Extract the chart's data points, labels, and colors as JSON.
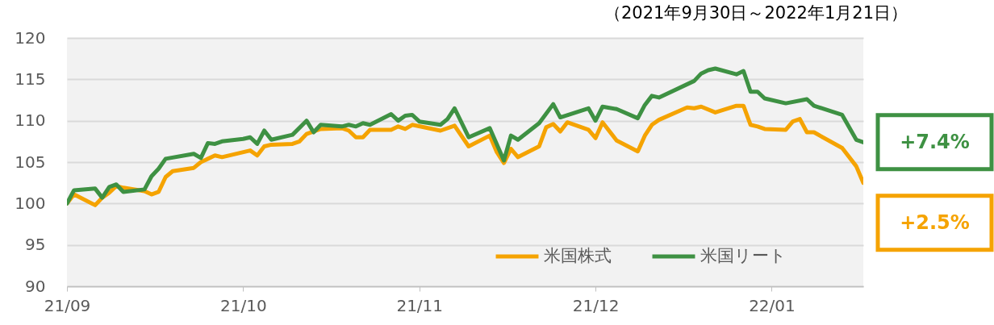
{
  "chart_data": {
    "type": "line",
    "title": "（2021年9月30日～2022年1月21日）",
    "xlim": [
      "2021-09-30",
      "2022-01-21"
    ],
    "xticks": [
      {
        "value": "2021-09-30",
        "label": "21/09"
      },
      {
        "value": "2021-10-25",
        "label": "21/10"
      },
      {
        "value": "2021-11-19",
        "label": "21/11"
      },
      {
        "value": "2021-12-14",
        "label": "21/12"
      },
      {
        "value": "2022-01-08",
        "label": "22/01"
      }
    ],
    "ylim": [
      90,
      120
    ],
    "yticks": [
      90,
      95,
      100,
      105,
      110,
      115,
      120
    ],
    "grid": "y",
    "legend": "bottom right",
    "line_style": "solid",
    "series": [
      {
        "name": "米国株式",
        "color": "#f5a300",
        "x": [
          "2021-09-30",
          "2021-10-01",
          "2021-10-04",
          "2021-10-05",
          "2021-10-06",
          "2021-10-07",
          "2021-10-08",
          "2021-10-11",
          "2021-10-12",
          "2021-10-13",
          "2021-10-14",
          "2021-10-15",
          "2021-10-18",
          "2021-10-19",
          "2021-10-21",
          "2021-10-22",
          "2021-10-26",
          "2021-10-27",
          "2021-10-28",
          "2021-10-29",
          "2021-11-01",
          "2021-11-02",
          "2021-11-03",
          "2021-11-05",
          "2021-11-08",
          "2021-11-09",
          "2021-11-10",
          "2021-11-11",
          "2021-11-12",
          "2021-11-15",
          "2021-11-16",
          "2021-11-17",
          "2021-11-18",
          "2021-11-22",
          "2021-11-24",
          "2021-11-26",
          "2021-11-29",
          "2021-11-30",
          "2021-12-01",
          "2021-12-02",
          "2021-12-03",
          "2021-12-06",
          "2021-12-07",
          "2021-12-08",
          "2021-12-09",
          "2021-12-10",
          "2021-12-13",
          "2021-12-14",
          "2021-12-15",
          "2021-12-17",
          "2021-12-20",
          "2021-12-21",
          "2021-12-22",
          "2021-12-23",
          "2021-12-27",
          "2021-12-28",
          "2021-12-29",
          "2021-12-31",
          "2022-01-03",
          "2022-01-04",
          "2022-01-05",
          "2022-01-06",
          "2022-01-07",
          "2022-01-10",
          "2022-01-11",
          "2022-01-12",
          "2022-01-13",
          "2022-01-14",
          "2022-01-18",
          "2022-01-20",
          "2022-01-21"
        ],
        "values": [
          100.0,
          101.1,
          99.8,
          100.7,
          101.3,
          102.1,
          101.9,
          101.5,
          101.1,
          101.4,
          103.2,
          103.9,
          104.3,
          105.0,
          105.8,
          105.6,
          106.4,
          105.8,
          106.9,
          107.1,
          107.2,
          107.5,
          108.4,
          109.0,
          109.1,
          108.8,
          108.0,
          108.0,
          108.9,
          108.9,
          109.3,
          109.0,
          109.5,
          108.8,
          109.4,
          106.9,
          108.2,
          106.2,
          104.9,
          106.6,
          105.6,
          106.9,
          109.2,
          109.6,
          108.7,
          109.8,
          108.9,
          107.9,
          109.8,
          107.6,
          106.3,
          108.2,
          109.5,
          110.1,
          111.6,
          111.5,
          111.7,
          111.0,
          111.8,
          111.8,
          109.5,
          109.3,
          109.0,
          108.9,
          109.9,
          110.2,
          108.6,
          108.6,
          106.7,
          104.5,
          102.5
        ]
      },
      {
        "name": "米国リート",
        "color": "#3e9143",
        "x": [
          "2021-09-30",
          "2021-10-01",
          "2021-10-04",
          "2021-10-05",
          "2021-10-06",
          "2021-10-07",
          "2021-10-08",
          "2021-10-11",
          "2021-10-12",
          "2021-10-13",
          "2021-10-14",
          "2021-10-18",
          "2021-10-19",
          "2021-10-20",
          "2021-10-21",
          "2021-10-22",
          "2021-10-25",
          "2021-10-26",
          "2021-10-27",
          "2021-10-28",
          "2021-10-29",
          "2021-11-01",
          "2021-11-03",
          "2021-11-04",
          "2021-11-05",
          "2021-11-08",
          "2021-11-09",
          "2021-11-10",
          "2021-11-11",
          "2021-11-12",
          "2021-11-15",
          "2021-11-16",
          "2021-11-17",
          "2021-11-18",
          "2021-11-19",
          "2021-11-22",
          "2021-11-23",
          "2021-11-24",
          "2021-11-26",
          "2021-11-29",
          "2021-12-01",
          "2021-12-02",
          "2021-12-03",
          "2021-12-06",
          "2021-12-08",
          "2021-12-09",
          "2021-12-13",
          "2021-12-14",
          "2021-12-15",
          "2021-12-17",
          "2021-12-20",
          "2021-12-21",
          "2021-12-22",
          "2021-12-23",
          "2021-12-28",
          "2021-12-29",
          "2021-12-30",
          "2021-12-31",
          "2022-01-03",
          "2022-01-04",
          "2022-01-05",
          "2022-01-06",
          "2022-01-07",
          "2022-01-10",
          "2022-01-13",
          "2022-01-14",
          "2022-01-18",
          "2022-01-20",
          "2022-01-21"
        ],
        "values": [
          100.0,
          101.6,
          101.8,
          100.7,
          102.0,
          102.3,
          101.4,
          101.7,
          103.3,
          104.2,
          105.4,
          106.0,
          105.5,
          107.3,
          107.2,
          107.5,
          107.8,
          108.0,
          107.2,
          108.8,
          107.7,
          108.3,
          110.0,
          108.6,
          109.5,
          109.3,
          109.5,
          109.3,
          109.7,
          109.5,
          110.8,
          110.0,
          110.6,
          110.7,
          109.9,
          109.5,
          110.2,
          111.5,
          108.0,
          109.1,
          105.2,
          108.2,
          107.7,
          109.7,
          112.0,
          110.4,
          111.5,
          110.0,
          111.7,
          111.4,
          110.3,
          111.9,
          113.0,
          112.8,
          114.8,
          115.7,
          116.1,
          116.3,
          115.6,
          116.0,
          113.5,
          113.5,
          112.7,
          112.1,
          112.6,
          111.8,
          110.7,
          107.7,
          107.4
        ]
      }
    ],
    "annotations": [
      {
        "text": "+7.4%",
        "x": "2022-01-21",
        "y": 107.4
      },
      {
        "text": "+2.5%",
        "x": "2022-01-21",
        "y": 102.5
      }
    ]
  }
}
